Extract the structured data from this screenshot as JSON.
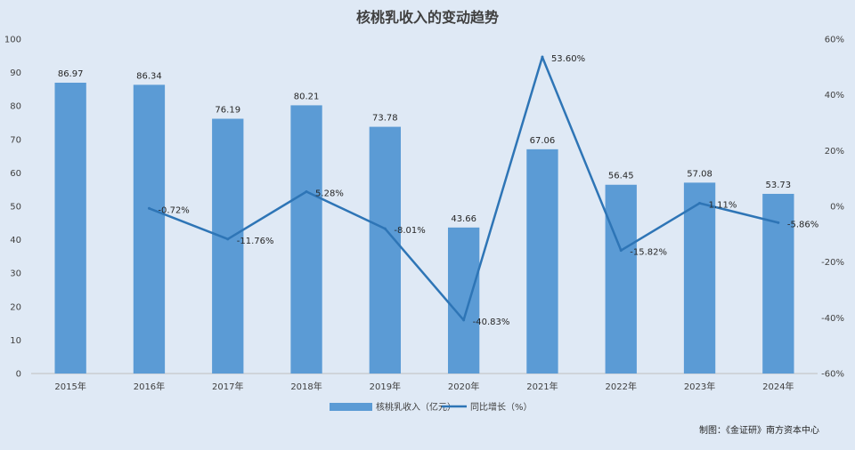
{
  "chart_data": {
    "type": "bar",
    "title": "核桃乳收入的变动趋势",
    "categories": [
      "2015年",
      "2016年",
      "2017年",
      "2018年",
      "2019年",
      "2020年",
      "2021年",
      "2022年",
      "2023年",
      "2024年"
    ],
    "series": [
      {
        "name": "核桃乳收入（亿元）",
        "type": "bar",
        "axis": "left",
        "color": "#5b9bd5",
        "values": [
          86.97,
          86.34,
          76.19,
          80.21,
          73.78,
          43.66,
          67.06,
          56.45,
          57.08,
          53.73
        ],
        "labels": [
          "86.97",
          "86.34",
          "76.19",
          "80.21",
          "73.78",
          "43.66",
          "67.06",
          "56.45",
          "57.08",
          "53.73"
        ]
      },
      {
        "name": "同比增长（%）",
        "type": "line",
        "axis": "right",
        "color": "#2e75b6",
        "values": [
          null,
          -0.72,
          -11.76,
          5.28,
          -8.01,
          -40.83,
          53.6,
          -15.82,
          1.11,
          -5.86
        ],
        "labels": [
          "",
          "-0.72%",
          "-11.76%",
          "5.28%",
          "-8.01%",
          "-40.83%",
          "53.60%",
          "-15.82%",
          "1.11%",
          "-5.86%"
        ]
      }
    ],
    "y_left": {
      "ylim": [
        0,
        100
      ],
      "ticks": [
        "0",
        "10",
        "20",
        "30",
        "40",
        "50",
        "60",
        "70",
        "80",
        "90",
        "100"
      ]
    },
    "y_right": {
      "ylim": [
        -60,
        60
      ],
      "ticks": [
        "-60%",
        "-40%",
        "-20%",
        "0%",
        "20%",
        "40%",
        "60%"
      ]
    },
    "legend_position": "bottom",
    "grid": false
  },
  "credit": "制图：《金证研》南方资本中心"
}
